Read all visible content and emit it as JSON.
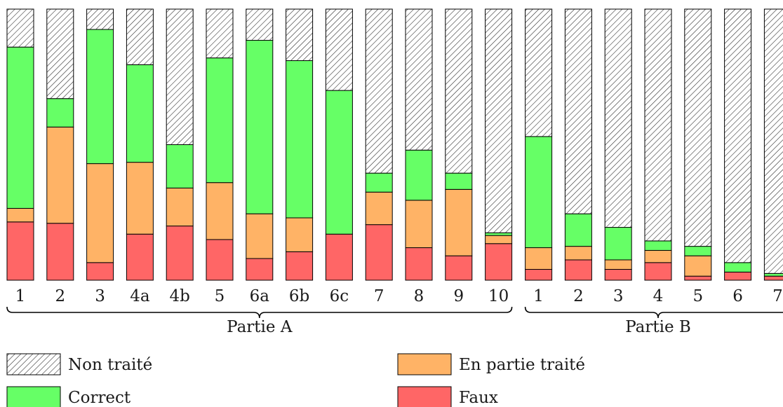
{
  "chart_data": {
    "type": "bar",
    "stacked": true,
    "normalized": true,
    "groups": [
      {
        "label": "Partie A",
        "categories": [
          "1",
          "2",
          "3",
          "4a",
          "4b",
          "5",
          "6a",
          "6b",
          "6c",
          "7",
          "8",
          "9",
          "10"
        ]
      },
      {
        "label": "Partie B",
        "categories": [
          "1",
          "2",
          "3",
          "4",
          "5",
          "6",
          "7"
        ]
      }
    ],
    "series": [
      {
        "name": "Faux",
        "color": "#ff6666",
        "values": [
          21.5,
          21.0,
          6.5,
          17.0,
          20.0,
          15.0,
          8.0,
          10.5,
          17.0,
          20.5,
          12.0,
          9.0,
          13.5,
          4.0,
          7.5,
          4.0,
          6.5,
          1.5,
          3.0,
          1.5
        ]
      },
      {
        "name": "En partie traité",
        "color": "#ffb366",
        "values": [
          5.0,
          35.5,
          36.5,
          26.5,
          14.0,
          21.0,
          16.5,
          12.5,
          0.0,
          12.0,
          17.5,
          24.5,
          3.0,
          8.0,
          5.0,
          3.5,
          4.5,
          7.5,
          0.0,
          0.0
        ]
      },
      {
        "name": "Correct",
        "color": "#66ff66",
        "values": [
          59.5,
          10.5,
          49.5,
          36.0,
          16.0,
          46.0,
          64.0,
          58.0,
          53.0,
          7.0,
          18.5,
          6.0,
          1.0,
          41.0,
          12.0,
          12.0,
          3.5,
          3.5,
          3.5,
          1.0
        ]
      },
      {
        "name": "Non traité",
        "color": "#ffffff",
        "pattern": "hatch",
        "values": [
          14.0,
          33.0,
          7.5,
          20.5,
          50.0,
          18.0,
          11.5,
          19.0,
          30.0,
          60.5,
          52.0,
          60.5,
          82.5,
          47.0,
          75.5,
          80.5,
          85.5,
          87.5,
          93.5,
          97.5
        ]
      }
    ],
    "legend": {
      "entries": [
        "Non traité",
        "En partie traité",
        "Correct",
        "Faux"
      ],
      "placement": "bottom"
    },
    "title": "",
    "xlabel": "",
    "ylabel": "",
    "ylim": [
      0,
      100
    ],
    "grid": false
  }
}
